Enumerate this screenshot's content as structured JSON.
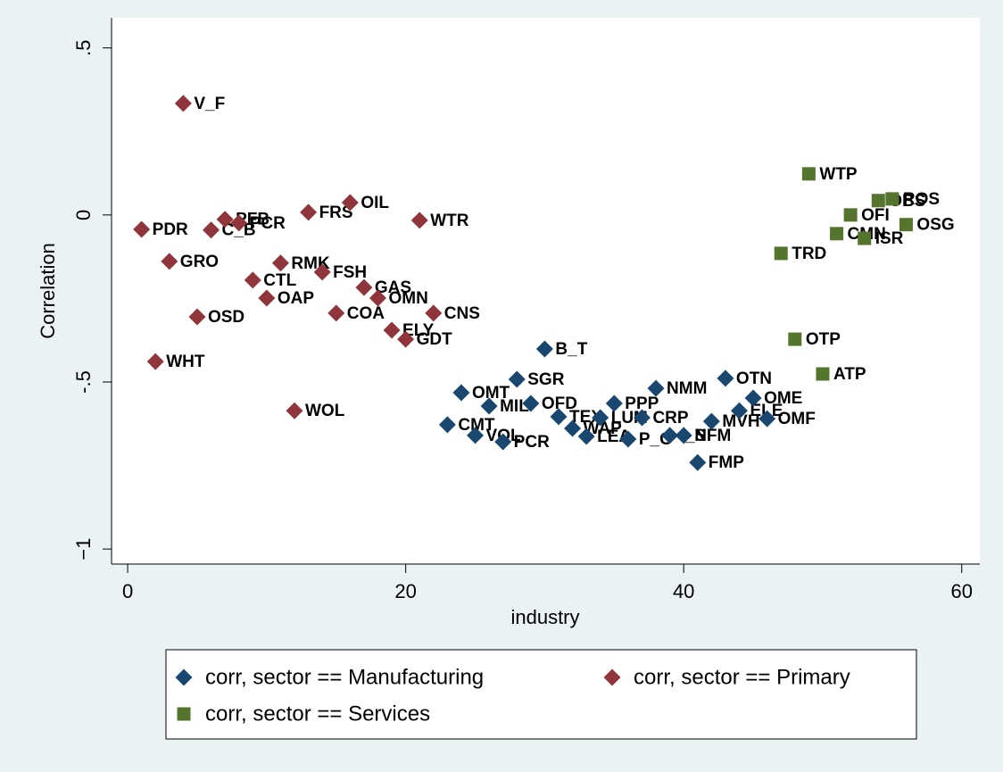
{
  "chart_data": {
    "type": "scatter",
    "x_label": "industry",
    "y_label": "Correlation",
    "xlim": [
      -1.16,
      61.3
    ],
    "ylim": [
      -1.045,
      0.59
    ],
    "xticks": [
      0,
      20,
      40,
      60
    ],
    "yticks": [
      {
        "value": 0.5,
        "label": ".5"
      },
      0,
      {
        "value": -0.5,
        "label": "-.5"
      },
      {
        "value": -1,
        "label": "−1"
      }
    ],
    "grid": false,
    "series": [
      {
        "name": "corr, sector == Manufacturing",
        "color": "#1a476f",
        "marker": "diamond",
        "x": [
          23,
          24,
          25,
          26,
          27,
          28,
          29,
          30,
          31,
          32,
          33,
          34,
          35,
          36,
          37,
          38,
          39,
          40,
          41,
          42,
          43,
          44,
          45,
          46
        ],
        "values": [
          -0.628,
          -0.532,
          -0.66,
          -0.572,
          -0.679,
          -0.492,
          -0.564,
          -0.401,
          -0.604,
          -0.639,
          -0.663,
          -0.607,
          -0.564,
          -0.671,
          -0.607,
          -0.519,
          -0.66,
          -0.66,
          -0.741,
          -0.618,
          -0.489,
          -0.586,
          -0.548,
          -0.61
        ],
        "labels": [
          "CMT",
          "OMT",
          "VOL",
          "MIL",
          "PCR",
          "SGR",
          "OFD",
          "B_T",
          "TEX",
          "WAP",
          "LEA",
          "LUM",
          "PPP",
          "P_C",
          "CRP",
          "NMM",
          "I_S",
          "NFM",
          "FMP",
          "MVH",
          "OTN",
          "ELE",
          "OME",
          "OMF"
        ]
      },
      {
        "name": "corr, sector == Primary",
        "color": "#90353b",
        "marker": "diamond",
        "x": [
          1,
          2,
          3,
          4,
          5,
          6,
          7,
          8,
          9,
          10,
          11,
          12,
          13,
          14,
          15,
          16,
          17,
          18,
          19,
          20,
          21,
          22
        ],
        "values": [
          -0.043,
          -0.439,
          -0.139,
          0.334,
          -0.305,
          -0.045,
          -0.013,
          -0.024,
          -0.195,
          -0.249,
          -0.144,
          -0.586,
          0.008,
          -0.171,
          -0.294,
          0.037,
          -0.217,
          -0.249,
          -0.345,
          -0.372,
          -0.016,
          -0.294
        ],
        "labels": [
          "PDR",
          "WHT",
          "GRO",
          "V_F",
          "OSD",
          "C_B",
          "PFB",
          "PCR",
          "CTL",
          "OAP",
          "RMK",
          "WOL",
          "FRS",
          "FSH",
          "COA",
          "OIL",
          "GAS",
          "OMN",
          "ELY",
          "GDT",
          "WTR",
          "CNS"
        ]
      },
      {
        "name": "corr, sector == Services",
        "color": "#55752f",
        "marker": "square",
        "x": [
          47,
          48,
          49,
          50,
          51,
          52,
          53,
          54,
          55,
          56
        ],
        "values": [
          -0.115,
          -0.372,
          0.123,
          -0.476,
          -0.056,
          0.0,
          -0.07,
          0.043,
          0.048,
          -0.029
        ],
        "labels": [
          "TRD",
          "OTP",
          "WTP",
          "ATP",
          "CMN",
          "OFI",
          "ISR",
          "OBS",
          "ROS",
          "OSG"
        ]
      }
    ]
  }
}
